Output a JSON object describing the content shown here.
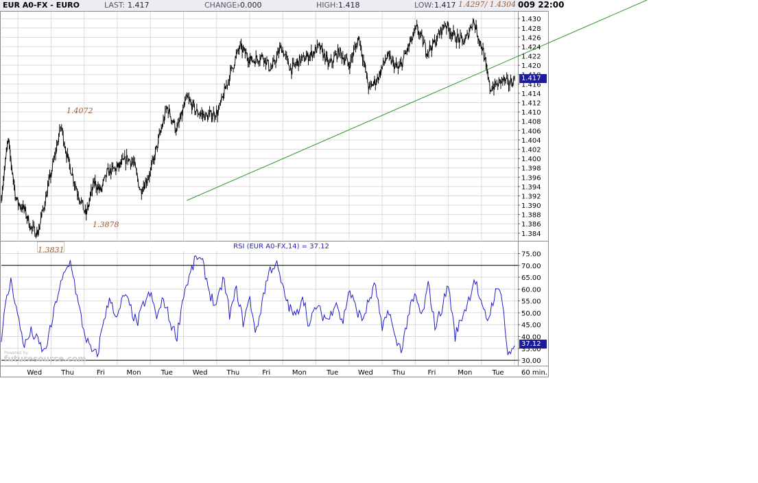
{
  "header": {
    "symbol": "EUR A0-FX - EURO",
    "last_label": "LAST:",
    "last_value": "1.417",
    "change_label": "CHANGE:",
    "change_value": "-0.000",
    "high_label": "HIGH:",
    "high_value": "1.418",
    "low_label": "LOW:",
    "low_value": "1.417",
    "fib_text": "1.4297/ 1.4304",
    "time_text": "009 22:00"
  },
  "annotations": {
    "a1": "1.4072",
    "a2": "1.3878",
    "a3": "1.3831"
  },
  "rsi_title": "RSI (EUR A0-FX,14) = 37.12",
  "price_badge": "1.417",
  "rsi_badge": "37.12",
  "interval_label": "60 min.",
  "watermark": "futuresource.com",
  "watermark_small": "Powered by",
  "colors": {
    "price_line": "#000000",
    "trendline": "#2a9a2a",
    "rsi_line": "#1c1cc8",
    "badge_bg": "#1c1c9a",
    "annotation": "#a05a2c",
    "grid": "#d9d9d9"
  },
  "chart_data": [
    {
      "type": "line",
      "title": "EUR A0-FX - EURO",
      "x_ticks": [
        "Wed",
        "Thu",
        "Fri",
        "Mon",
        "Tue",
        "Wed",
        "Thu",
        "Fri",
        "Mon",
        "Tue",
        "Wed",
        "Thu",
        "Fri",
        "Mon",
        "Tue"
      ],
      "ylim": [
        1.3825,
        1.4315
      ],
      "y_ticks": [
        1.384,
        1.386,
        1.388,
        1.39,
        1.392,
        1.394,
        1.396,
        1.398,
        1.4,
        1.402,
        1.404,
        1.406,
        1.408,
        1.41,
        1.412,
        1.414,
        1.416,
        1.418,
        1.42,
        1.422,
        1.424,
        1.426,
        1.428,
        1.43
      ],
      "y_tick_labels": [
        "1.384",
        "1.386",
        "1.388",
        "1.390",
        "1.392",
        "1.394",
        "1.396",
        "1.398",
        "1.400",
        "1.402",
        "1.404",
        "1.406",
        "1.408",
        "1.410",
        "1.412",
        "1.414",
        "1.416",
        "1.418",
        "1.420",
        "1.422",
        "1.424",
        "1.426",
        "1.428",
        "1.430"
      ],
      "grid": true,
      "last": 1.417,
      "series": [
        {
          "x": [
            0,
            0.2,
            0.45,
            0.7,
            0.9,
            1.1,
            1.35,
            1.6,
            1.8,
            2.0,
            2.25,
            2.55,
            2.8,
            3.0,
            3.2,
            3.5,
            3.8,
            4.0,
            4.2,
            4.5,
            4.75,
            5.0,
            5.3,
            5.6,
            5.9,
            6.2,
            6.55,
            6.9,
            7.2,
            7.55,
            7.9,
            8.15,
            8.45,
            8.75,
            9.0,
            9.3,
            9.6,
            9.9,
            10.2,
            10.5,
            10.8,
            11.1,
            11.35,
            11.65,
            12.0,
            12.3,
            12.55,
            12.85,
            13.1,
            13.4,
            13.7,
            14.0,
            14.25,
            14.55,
            14.75,
            15.0,
            15.15,
            15.3,
            15.5
          ],
          "y": [
            1.392,
            1.404,
            1.391,
            1.389,
            1.385,
            1.384,
            1.392,
            1.4,
            1.4072,
            1.4,
            1.394,
            1.3878,
            1.395,
            1.393,
            1.397,
            1.398,
            1.4,
            1.399,
            1.393,
            1.397,
            1.404,
            1.411,
            1.406,
            1.413,
            1.41,
            1.409,
            1.41,
            1.418,
            1.424,
            1.421,
            1.422,
            1.419,
            1.424,
            1.419,
            1.421,
            1.422,
            1.424,
            1.42,
            1.423,
            1.42,
            1.426,
            1.415,
            1.417,
            1.422,
            1.419,
            1.424,
            1.428,
            1.423,
            1.425,
            1.429,
            1.426,
            1.425,
            1.4297,
            1.423,
            1.415,
            1.416,
            1.417,
            1.416,
            1.417
          ]
        }
      ],
      "trendline": {
        "x": [
          5.6,
          19.5
        ],
        "y": [
          1.391,
          1.434
        ]
      }
    },
    {
      "type": "line",
      "title": "RSI (EUR A0-FX,14) = 37.12",
      "ylim": [
        28,
        76
      ],
      "y_ticks": [
        30,
        35,
        40,
        45,
        50,
        55,
        60,
        65,
        70,
        75
      ],
      "y_tick_labels": [
        "30.00",
        "35.00",
        "40.00",
        "45.00",
        "50.00",
        "55.00",
        "60.00",
        "65.00",
        "70.00",
        "75.00"
      ],
      "reference_lines": [
        70,
        30
      ],
      "series": [
        {
          "x": [
            0,
            0.15,
            0.3,
            0.5,
            0.7,
            0.9,
            1.1,
            1.3,
            1.5,
            1.7,
            1.9,
            2.1,
            2.3,
            2.5,
            2.7,
            2.9,
            3.1,
            3.3,
            3.5,
            3.7,
            3.9,
            4.1,
            4.3,
            4.5,
            4.7,
            4.9,
            5.1,
            5.3,
            5.5,
            5.7,
            5.9,
            6.1,
            6.3,
            6.5,
            6.7,
            6.9,
            7.1,
            7.3,
            7.5,
            7.7,
            7.9,
            8.1,
            8.3,
            8.5,
            8.7,
            8.9,
            9.1,
            9.3,
            9.5,
            9.7,
            9.9,
            10.1,
            10.3,
            10.5,
            10.7,
            10.9,
            11.1,
            11.3,
            11.5,
            11.7,
            11.9,
            12.1,
            12.3,
            12.5,
            12.7,
            12.9,
            13.1,
            13.3,
            13.5,
            13.7,
            13.9,
            14.1,
            14.3,
            14.5,
            14.7,
            14.9,
            15.1,
            15.3,
            15.5
          ],
          "y": [
            40,
            55,
            64,
            48,
            36,
            42,
            38,
            33,
            44,
            58,
            66,
            72,
            55,
            42,
            34,
            32,
            48,
            56,
            47,
            58,
            52,
            45,
            54,
            58,
            48,
            56,
            46,
            40,
            58,
            66,
            74,
            70,
            58,
            52,
            65,
            49,
            60,
            46,
            56,
            41,
            57,
            68,
            71,
            60,
            52,
            48,
            58,
            44,
            53,
            49,
            47,
            56,
            45,
            60,
            52,
            47,
            55,
            62,
            42,
            52,
            38,
            35,
            50,
            57,
            48,
            62,
            44,
            52,
            62,
            40,
            48,
            55,
            65,
            52,
            47,
            58,
            60,
            31,
            37
          ]
        }
      ]
    }
  ]
}
